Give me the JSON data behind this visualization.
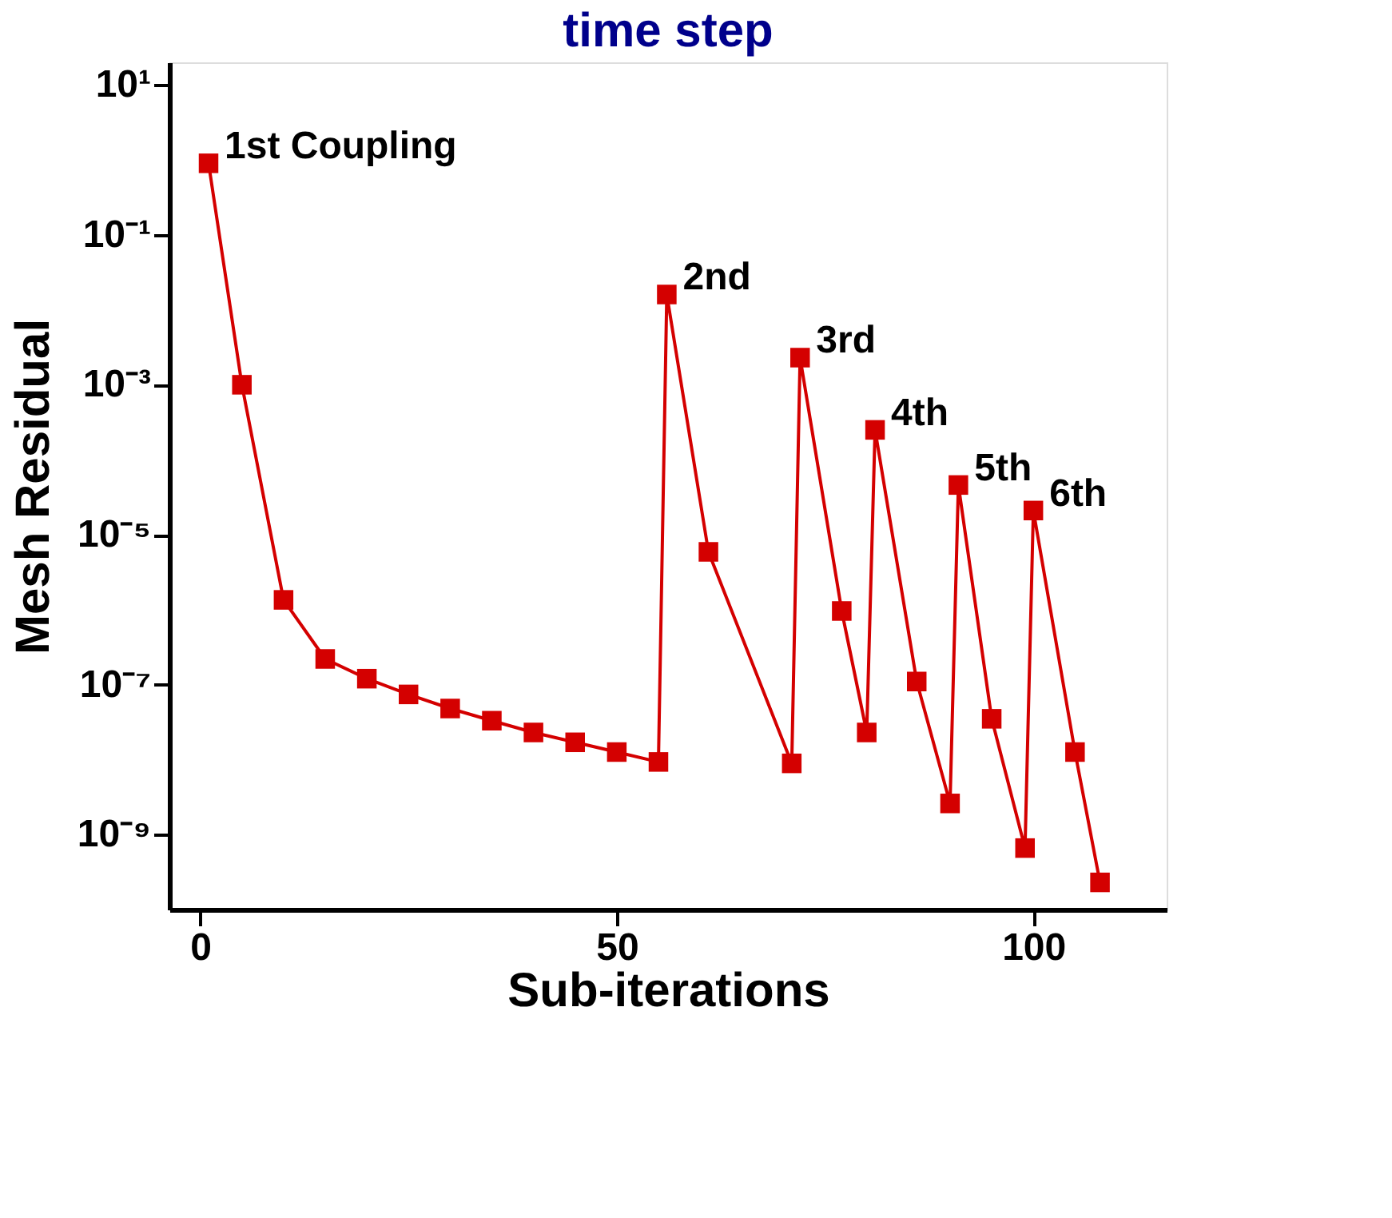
{
  "chart_data": {
    "type": "line",
    "title": "time step",
    "xlabel": "Sub-iterations",
    "ylabel": "Mesh Residual",
    "series": [
      {
        "color": "#d40000",
        "marker": "square",
        "line_style": "solid",
        "x": [
          1,
          5,
          10,
          15,
          20,
          25,
          30,
          35,
          40,
          45,
          50,
          55,
          56,
          61,
          71,
          72,
          77,
          80,
          81,
          86,
          90,
          91,
          95,
          99,
          100,
          105,
          108
        ],
        "values": [
          0.9,
          0.001,
          1.35e-06,
          2.2e-07,
          1.2e-07,
          7.4e-08,
          4.8e-08,
          3.3e-08,
          2.3e-08,
          1.7e-08,
          1.26e-08,
          9.3e-09,
          0.016,
          5.9e-06,
          8.9e-09,
          0.0023,
          9.6e-07,
          2.3e-08,
          0.00025,
          1.1e-07,
          2.6e-09,
          4.6e-05,
          3.5e-08,
          6.6e-10,
          2.1e-05,
          1.26e-08,
          2.3e-10
        ]
      }
    ],
    "log": "y",
    "xlim": [
      -3.7,
      116
    ],
    "xticks": [
      0,
      50,
      100
    ],
    "ylim": [
      1e-10,
      20
    ],
    "yticks": [
      {
        "value": 10,
        "label": "10¹"
      },
      {
        "value": 0.1,
        "label": "10⁻¹"
      },
      {
        "value": 0.001,
        "label": "10⁻³"
      },
      {
        "value": 1e-05,
        "label": "10⁻⁵"
      },
      {
        "value": 1e-07,
        "label": "10⁻⁷"
      },
      {
        "value": 1e-09,
        "label": "10⁻⁹"
      }
    ],
    "grid": false,
    "annotations": [
      {
        "text": "1st Coupling",
        "x": 1,
        "y": 0.9
      },
      {
        "text": "2nd",
        "x": 56,
        "y": 0.016
      },
      {
        "text": "3rd",
        "x": 72,
        "y": 0.0023
      },
      {
        "text": "4th",
        "x": 81,
        "y": 0.00025
      },
      {
        "text": "5th",
        "x": 91,
        "y": 4.6e-05
      },
      {
        "text": "6th",
        "x": 100,
        "y": 2.1e-05
      }
    ]
  }
}
